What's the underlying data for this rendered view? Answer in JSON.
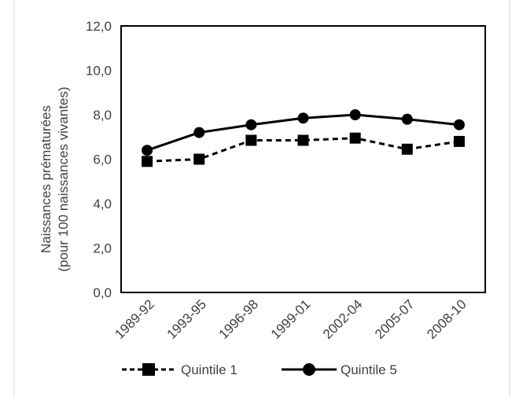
{
  "chart_data": {
    "type": "line",
    "categories": [
      "1989-92",
      "1993-95",
      "1996-98",
      "1999-01",
      "2002-04",
      "2005-07",
      "2008-10"
    ],
    "series": [
      {
        "name": "Quintile 1",
        "values": [
          5.9,
          6.0,
          6.85,
          6.85,
          6.95,
          6.45,
          6.8
        ],
        "color": "#000000",
        "line_style": "dashed",
        "marker": "square"
      },
      {
        "name": "Quintile 5",
        "values": [
          6.4,
          7.2,
          7.55,
          7.85,
          8.0,
          7.8,
          7.55
        ],
        "color": "#000000",
        "line_style": "solid",
        "marker": "circle"
      }
    ],
    "title": "",
    "xlabel": "",
    "ylabel_lines": [
      "Naissances prématurées",
      "(pour 100 naissances vivantes)"
    ],
    "ylim": [
      0,
      12
    ],
    "yticks": [
      "0,0",
      "2,0",
      "4,0",
      "6,0",
      "8,0",
      "10,0",
      "12,0"
    ],
    "grid": false,
    "legend_position": "bottom"
  }
}
